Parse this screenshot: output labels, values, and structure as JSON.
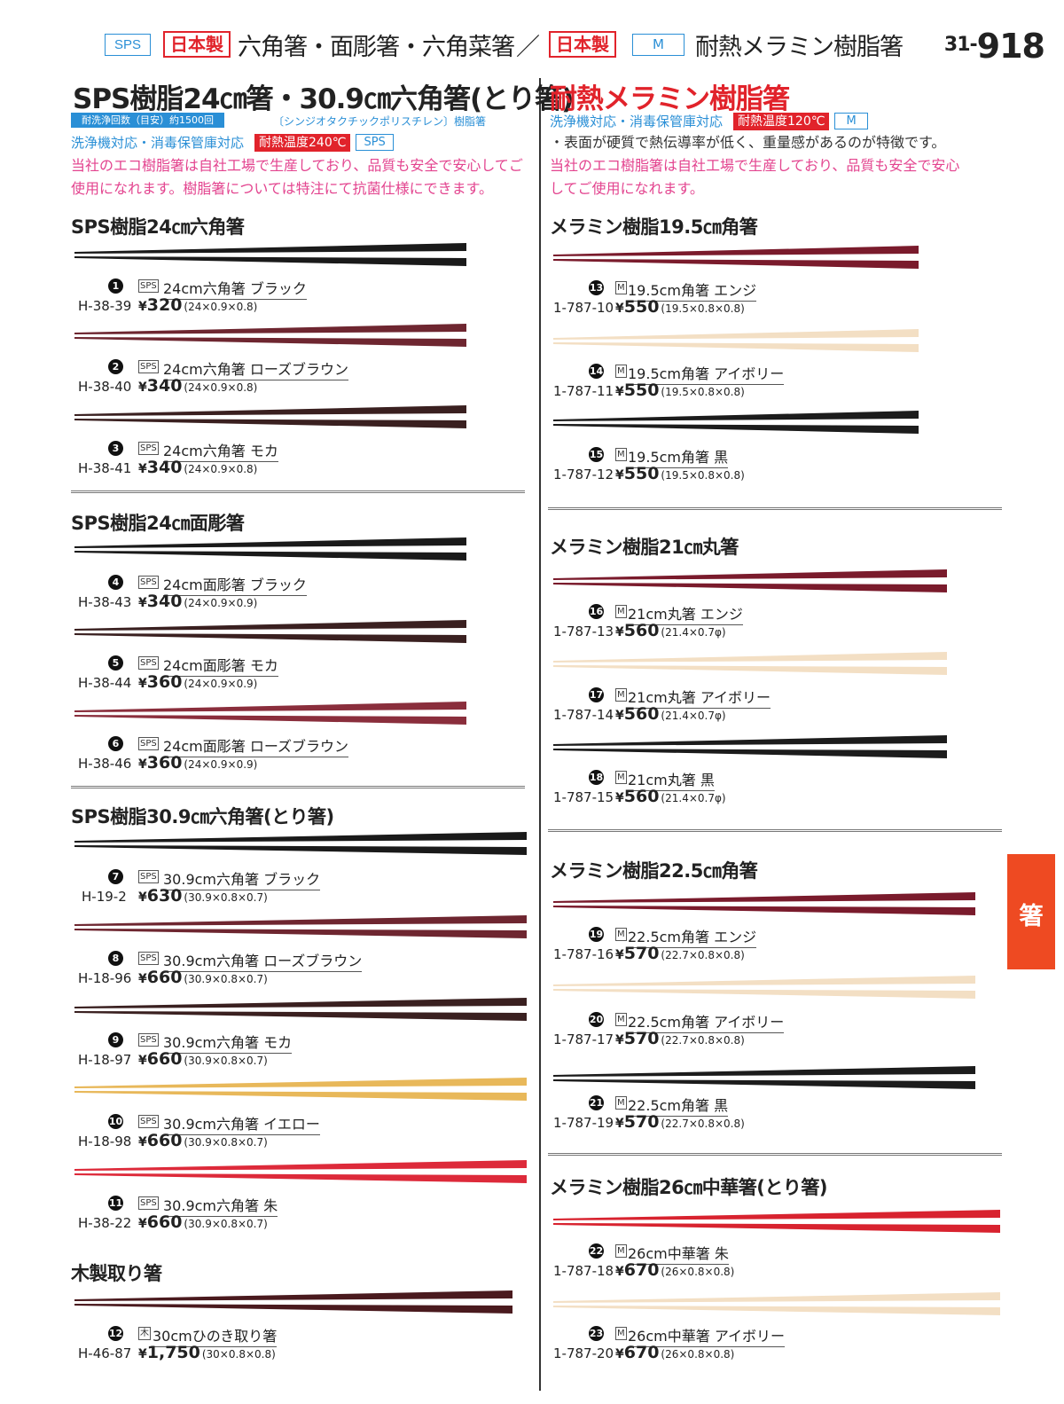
{
  "header": {
    "tag_sps": "SPS",
    "made_in_japan": "日本製",
    "title_left": "六角箸・面彫箸・六角菜箸",
    "slash": "／",
    "made_in_japan_2": "日本製",
    "tag_m": "M",
    "title_right": "耐熱メラミン樹脂箸",
    "page_prefix": "31-",
    "page_number": "918"
  },
  "left": {
    "title": "SPS樹脂24㎝箸・30.9㎝六角箸(とり箸)",
    "wash_bar": "耐洗浄回数（目安）約1500回",
    "material": "〔シンジオタクチックポリスチレン〕樹脂箸",
    "info": "洗浄機対応・消毒保管庫対応",
    "heat": "耐熱温度240℃",
    "tag": "SPS",
    "desc": "当社のエコ樹脂箸は自社工場で生産しており、品質も安全で安心してご使用になれます。樹脂箸については特注にて抗菌仕様にできます。"
  },
  "right": {
    "title": "耐熱メラミン樹脂箸",
    "info": "洗浄機対応・消毒保管庫対応",
    "heat": "耐熱温度120℃",
    "tag": "M",
    "note": "・表面が硬質で熱伝導率が低く、重量感があるのが特徴です。",
    "desc_1": "当社のエコ樹脂箸は自社工場で生産しており、品質も安全で安心",
    "desc_2": "してご使用になれます。"
  },
  "sections": [
    {
      "title": "SPS樹脂24㎝六角箸"
    },
    {
      "title": "SPS樹脂24㎝面彫箸"
    },
    {
      "title": "SPS樹脂30.9㎝六角箸(とり箸)"
    },
    {
      "title": "木製取り箸"
    },
    {
      "title": "メラミン樹脂19.5㎝角箸"
    },
    {
      "title": "メラミン樹脂21㎝丸箸"
    },
    {
      "title": "メラミン樹脂22.5㎝角箸"
    },
    {
      "title": "メラミン樹脂26㎝中華箸(とり箸)"
    }
  ],
  "colors": {
    "black": "#1a1a1a",
    "rose_brown": "#6e2630",
    "mocha": "#3a2020",
    "rose_brown_carved": "#8a2e3c",
    "yellow": "#e8b85a",
    "vermilion": "#dd2a3a",
    "wood": "#4a1a1e",
    "enji": "#7a1b2c",
    "ivory": "#f3dfc4",
    "melamine_black": "#1c1c1c",
    "chinese_red": "#d8232f",
    "accent_blue": "#2a8fd6",
    "accent_red": "#e1232b",
    "accent_pink": "#e3448f",
    "side_tab": "#ee4a22"
  },
  "items": [
    {
      "no": "1",
      "mark": "SPS",
      "name": "24cm六角箸 ブラック",
      "code": "H-38-39",
      "price": "320",
      "dims": "(24×0.9×0.8)"
    },
    {
      "no": "2",
      "mark": "SPS",
      "name": "24cm六角箸 ローズブラウン",
      "code": "H-38-40",
      "price": "340",
      "dims": "(24×0.9×0.8)"
    },
    {
      "no": "3",
      "mark": "SPS",
      "name": "24cm六角箸 モカ",
      "code": "H-38-41",
      "price": "340",
      "dims": "(24×0.9×0.8)"
    },
    {
      "no": "4",
      "mark": "SPS",
      "name": "24cm面彫箸 ブラック",
      "code": "H-38-43",
      "price": "340",
      "dims": "(24×0.9×0.9)"
    },
    {
      "no": "5",
      "mark": "SPS",
      "name": "24cm面彫箸 モカ",
      "code": "H-38-44",
      "price": "360",
      "dims": "(24×0.9×0.9)"
    },
    {
      "no": "6",
      "mark": "SPS",
      "name": "24cm面彫箸 ローズブラウン",
      "code": "H-38-46",
      "price": "360",
      "dims": "(24×0.9×0.9)"
    },
    {
      "no": "7",
      "mark": "SPS",
      "name": "30.9cm六角箸 ブラック",
      "code": "H-19-2",
      "price": "630",
      "dims": "(30.9×0.8×0.7)"
    },
    {
      "no": "8",
      "mark": "SPS",
      "name": "30.9cm六角箸 ローズブラウン",
      "code": "H-18-96",
      "price": "660",
      "dims": "(30.9×0.8×0.7)"
    },
    {
      "no": "9",
      "mark": "SPS",
      "name": "30.9cm六角箸 モカ",
      "code": "H-18-97",
      "price": "660",
      "dims": "(30.9×0.8×0.7)"
    },
    {
      "no": "10",
      "mark": "SPS",
      "name": "30.9cm六角箸 イエロー",
      "code": "H-18-98",
      "price": "660",
      "dims": "(30.9×0.8×0.7)"
    },
    {
      "no": "11",
      "mark": "SPS",
      "name": "30.9cm六角箸 朱",
      "code": "H-38-22",
      "price": "660",
      "dims": "(30.9×0.8×0.7)"
    },
    {
      "no": "12",
      "mark": "木",
      "name": "30cmひのき取り箸",
      "code": "H-46-87",
      "price": "1,750",
      "dims": "(30×0.8×0.8)"
    },
    {
      "no": "13",
      "mark": "M",
      "name": "19.5cm角箸 エンジ",
      "code": "1-787-10",
      "price": "550",
      "dims": "(19.5×0.8×0.8)"
    },
    {
      "no": "14",
      "mark": "M",
      "name": "19.5cm角箸 アイボリー",
      "code": "1-787-11",
      "price": "550",
      "dims": "(19.5×0.8×0.8)"
    },
    {
      "no": "15",
      "mark": "M",
      "name": "19.5cm角箸 黒",
      "code": "1-787-12",
      "price": "550",
      "dims": "(19.5×0.8×0.8)"
    },
    {
      "no": "16",
      "mark": "M",
      "name": "21cm丸箸 エンジ",
      "code": "1-787-13",
      "price": "560",
      "dims": "(21.4×0.7φ)"
    },
    {
      "no": "17",
      "mark": "M",
      "name": "21cm丸箸 アイボリー",
      "code": "1-787-14",
      "price": "560",
      "dims": "(21.4×0.7φ)"
    },
    {
      "no": "18",
      "mark": "M",
      "name": "21cm丸箸 黒",
      "code": "1-787-15",
      "price": "560",
      "dims": "(21.4×0.7φ)"
    },
    {
      "no": "19",
      "mark": "M",
      "name": "22.5cm角箸 エンジ",
      "code": "1-787-16",
      "price": "570",
      "dims": "(22.7×0.8×0.8)"
    },
    {
      "no": "20",
      "mark": "M",
      "name": "22.5cm角箸 アイボリー",
      "code": "1-787-17",
      "price": "570",
      "dims": "(22.7×0.8×0.8)"
    },
    {
      "no": "21",
      "mark": "M",
      "name": "22.5cm角箸 黒",
      "code": "1-787-19",
      "price": "570",
      "dims": "(22.7×0.8×0.8)"
    },
    {
      "no": "22",
      "mark": "M",
      "name": "26cm中華箸 朱",
      "code": "1-787-18",
      "price": "670",
      "dims": "(26×0.8×0.8)"
    },
    {
      "no": "23",
      "mark": "M",
      "name": "26cm中華箸 アイボリー",
      "code": "1-787-20",
      "price": "670",
      "dims": "(26×0.8×0.8)"
    }
  ],
  "side_tab": "箸",
  "currency": "¥"
}
